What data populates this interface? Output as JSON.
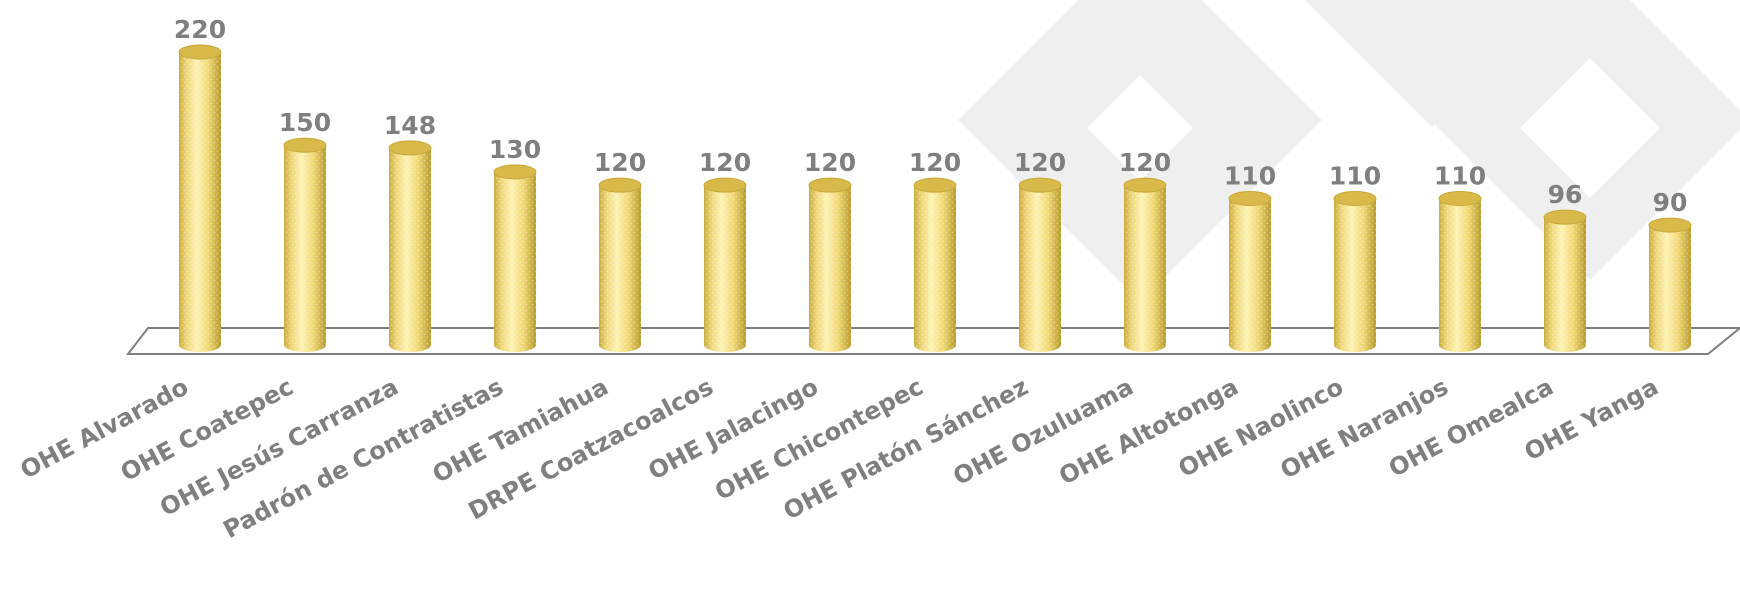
{
  "chart_data": {
    "type": "bar",
    "style": "3d-cylinder",
    "categories": [
      "OHE Alvarado",
      "OHE Coatepec",
      "OHE Jesús Carranza",
      "Padrón de Contratistas",
      "OHE Tamiahua",
      "DRPE Coatzacoalcos",
      "OHE Jalacingo",
      "OHE Chicontepec",
      "OHE Platón Sánchez",
      "OHE Ozuluama",
      "OHE Altotonga",
      "OHE Naolinco",
      "OHE Naranjos",
      "OHE Omealca",
      "OHE Yanga"
    ],
    "values": [
      220,
      150,
      148,
      130,
      120,
      120,
      120,
      120,
      120,
      120,
      110,
      110,
      110,
      96,
      90
    ],
    "data_labels": [
      "220",
      "150",
      "148",
      "130",
      "120",
      "120",
      "120",
      "120",
      "120",
      "120",
      "110",
      "110",
      "110",
      "96",
      "90"
    ],
    "ylim": [
      0,
      220
    ],
    "grid": false,
    "legend": "none",
    "colors": {
      "bar_light": "#fbefa8",
      "bar_mid": "#eed36a",
      "bar_dark": "#b79a2c",
      "bar_top": "#d8b94a",
      "label": "#7f7f7f",
      "floor_line": "#7f7f7f",
      "watermark": "#efefef"
    }
  }
}
